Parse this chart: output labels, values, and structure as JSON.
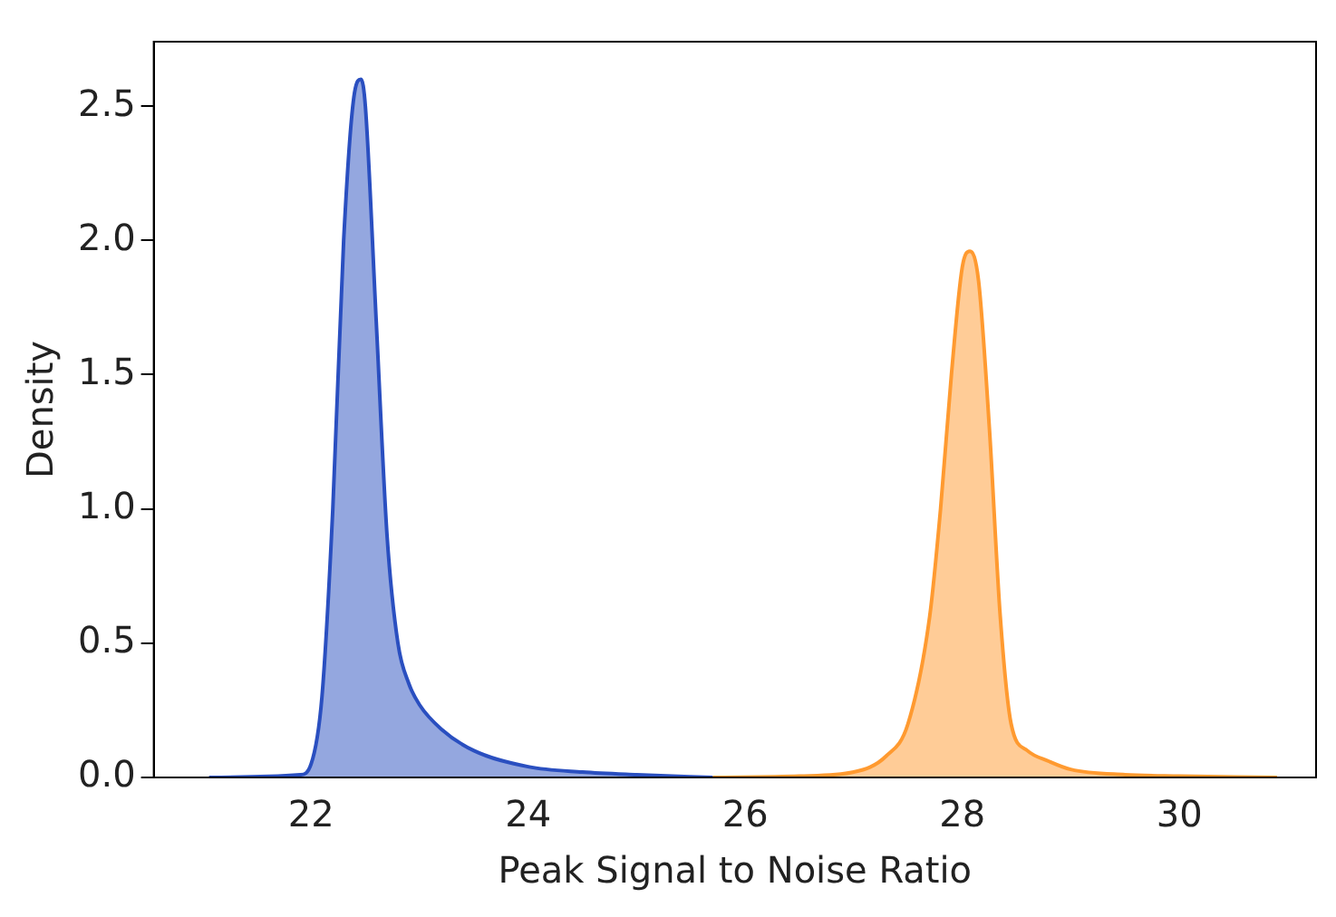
{
  "chart_data": {
    "type": "area",
    "xlabel": "Peak Signal to Noise Ratio",
    "ylabel": "Density",
    "xlim": [
      20.55,
      31.26
    ],
    "ylim": [
      0,
      2.74
    ],
    "xticks": [
      22,
      24,
      26,
      28,
      30
    ],
    "yticks": [
      {
        "value": 0,
        "label": "0.0"
      },
      0.5,
      {
        "value": 1,
        "label": "1.0"
      },
      1.5,
      {
        "value": 2,
        "label": "2.0"
      },
      2.5
    ],
    "grid": false,
    "legend": false,
    "series": [
      {
        "color": "#2a4fc0",
        "x": [
          21.06,
          21.9,
          22.0,
          22.1,
          22.2,
          22.3,
          22.4,
          22.46,
          22.5,
          22.6,
          22.7,
          22.8,
          22.9,
          23.0,
          23.2,
          23.5,
          24.0,
          24.5,
          25.0,
          25.7
        ],
        "values": [
          0,
          0.01,
          0.05,
          0.3,
          1.0,
          2.0,
          2.55,
          2.6,
          2.5,
          1.7,
          0.9,
          0.5,
          0.35,
          0.27,
          0.18,
          0.1,
          0.04,
          0.02,
          0.01,
          0
        ]
      },
      {
        "color": "#ff9a30",
        "x": [
          25.7,
          26.5,
          27.0,
          27.3,
          27.5,
          27.7,
          27.8,
          27.9,
          28.0,
          28.07,
          28.15,
          28.25,
          28.35,
          28.45,
          28.6,
          28.8,
          29.0,
          29.5,
          30.0,
          30.9
        ],
        "values": [
          0,
          0.005,
          0.02,
          0.08,
          0.2,
          0.6,
          1.0,
          1.5,
          1.9,
          1.96,
          1.85,
          1.3,
          0.6,
          0.2,
          0.1,
          0.06,
          0.03,
          0.01,
          0.005,
          0
        ]
      }
    ]
  }
}
